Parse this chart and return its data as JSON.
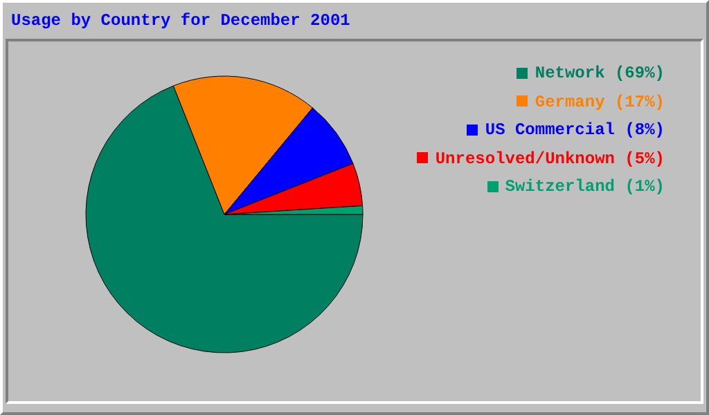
{
  "chart_data": {
    "type": "pie",
    "title": "Usage by Country for December 2001",
    "categories": [
      "Network (69%)",
      "Germany (17%)",
      "US Commercial (8%)",
      "Unresolved/Unknown (5%)",
      "Switzerland (1%)"
    ],
    "values": [
      69,
      17,
      8,
      5,
      1
    ],
    "colors": [
      "#008060",
      "#ff8000",
      "#0000ff",
      "#ff0000",
      "#00a070"
    ],
    "legend": "right"
  }
}
